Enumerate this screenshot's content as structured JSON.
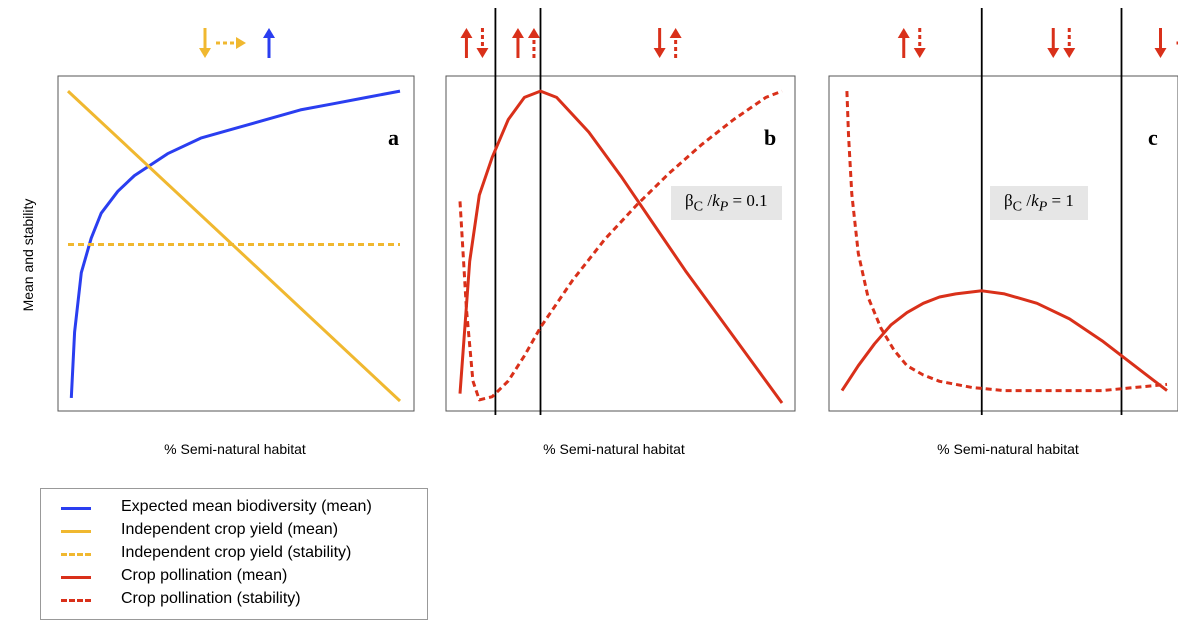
{
  "colors": {
    "blue": "#2a3ef0",
    "yellow": "#f0b830",
    "red": "#d9301a"
  },
  "y_axis_label": "Mean and stability",
  "legend": [
    {
      "label": "Expected mean biodiversity (mean)",
      "color": "#2a3ef0",
      "style": "solid"
    },
    {
      "label": "Independent crop yield (mean)",
      "color": "#f0b830",
      "style": "solid"
    },
    {
      "label": "Independent crop yield (stability)",
      "color": "#f0b830",
      "style": "dashed"
    },
    {
      "label": "Crop pollination (mean)",
      "color": "#d9301a",
      "style": "solid"
    },
    {
      "label": "Crop pollination (stability)",
      "color": "#d9301a",
      "style": "dashed"
    }
  ],
  "chart_data": [
    {
      "type": "line",
      "panel": "a",
      "panel_label": "a",
      "xlabel": "% Semi-natural habitat",
      "ylabel": "Mean and stability",
      "xlim": [
        0,
        1
      ],
      "ylim": [
        0,
        1
      ],
      "grid": false,
      "arrows": [
        {
          "dir": "down",
          "style": "solid",
          "color": "#f0b830"
        },
        {
          "dir": "right",
          "style": "dashed",
          "color": "#f0b830"
        },
        {
          "dir": "up",
          "style": "solid",
          "color": "#2a3ef0"
        }
      ],
      "series": [
        {
          "name": "Expected mean biodiversity (mean)",
          "color": "#2a3ef0",
          "style": "solid",
          "x": [
            0.01,
            0.02,
            0.04,
            0.07,
            0.1,
            0.15,
            0.2,
            0.3,
            0.4,
            0.5,
            0.6,
            0.7,
            0.8,
            0.9,
            1.0
          ],
          "y": [
            0.01,
            0.22,
            0.41,
            0.52,
            0.6,
            0.67,
            0.72,
            0.79,
            0.84,
            0.87,
            0.9,
            0.93,
            0.95,
            0.97,
            0.99
          ]
        },
        {
          "name": "Independent crop yield (mean)",
          "color": "#f0b830",
          "style": "solid",
          "x": [
            0,
            1
          ],
          "y": [
            0.99,
            0.0
          ]
        },
        {
          "name": "Independent crop yield (stability)",
          "color": "#f0b830",
          "style": "dashed",
          "x": [
            0,
            1
          ],
          "y": [
            0.5,
            0.5
          ]
        }
      ]
    },
    {
      "type": "line",
      "panel": "b",
      "panel_label": "b",
      "ratio_label": {
        "beta": "β",
        "sub_c": "C",
        "k": "k",
        "sub_p": "P",
        "value": "= 0.1"
      },
      "xlabel": "% Semi-natural habitat",
      "xlim": [
        0,
        1
      ],
      "ylim": [
        0,
        1
      ],
      "grid": false,
      "vlines": [
        0.11,
        0.25
      ],
      "arrow_groups": [
        {
          "x": 0.02,
          "arrows": [
            {
              "dir": "up",
              "style": "solid"
            },
            {
              "dir": "down",
              "style": "dashed"
            }
          ]
        },
        {
          "x": 0.18,
          "arrows": [
            {
              "dir": "up",
              "style": "solid"
            },
            {
              "dir": "up",
              "style": "dashed"
            }
          ]
        },
        {
          "x": 0.62,
          "arrows": [
            {
              "dir": "down",
              "style": "solid"
            },
            {
              "dir": "up",
              "style": "dashed"
            }
          ]
        }
      ],
      "series": [
        {
          "name": "Crop pollination (mean)",
          "color": "#d9301a",
          "style": "solid",
          "x": [
            0.0,
            0.03,
            0.06,
            0.1,
            0.15,
            0.2,
            0.25,
            0.3,
            0.4,
            0.5,
            0.6,
            0.7,
            0.8,
            0.9,
            1.0
          ],
          "y": [
            0.03,
            0.45,
            0.66,
            0.78,
            0.9,
            0.97,
            0.99,
            0.97,
            0.86,
            0.72,
            0.57,
            0.42,
            0.28,
            0.14,
            0.0
          ]
        },
        {
          "name": "Crop pollination (stability)",
          "color": "#d9301a",
          "style": "dashed",
          "x": [
            0.0,
            0.02,
            0.04,
            0.06,
            0.1,
            0.15,
            0.2,
            0.25,
            0.35,
            0.45,
            0.55,
            0.65,
            0.75,
            0.85,
            0.95,
            1.0
          ],
          "y": [
            0.64,
            0.3,
            0.07,
            0.01,
            0.02,
            0.07,
            0.15,
            0.24,
            0.39,
            0.52,
            0.63,
            0.73,
            0.82,
            0.9,
            0.97,
            0.99
          ]
        }
      ]
    },
    {
      "type": "line",
      "panel": "c",
      "panel_label": "c",
      "ratio_label": {
        "beta": "β",
        "sub_c": "C",
        "k": "k",
        "sub_p": "P",
        "value": "= 1"
      },
      "xlabel": "% Semi-natural habitat",
      "xlim": [
        0,
        1
      ],
      "ylim": [
        0,
        1
      ],
      "grid": false,
      "vlines": [
        0.43,
        0.86
      ],
      "arrow_groups": [
        {
          "x": 0.19,
          "arrows": [
            {
              "dir": "up",
              "style": "solid"
            },
            {
              "dir": "down",
              "style": "dashed"
            }
          ]
        },
        {
          "x": 0.65,
          "arrows": [
            {
              "dir": "down",
              "style": "solid"
            },
            {
              "dir": "down",
              "style": "dashed"
            }
          ]
        },
        {
          "x": 0.98,
          "arrows": [
            {
              "dir": "down",
              "style": "solid"
            },
            {
              "dir": "right",
              "style": "dashed"
            }
          ]
        }
      ],
      "series": [
        {
          "name": "Crop pollination (mean)",
          "color": "#d9301a",
          "style": "solid",
          "x": [
            0.0,
            0.05,
            0.1,
            0.15,
            0.2,
            0.25,
            0.3,
            0.35,
            0.43,
            0.5,
            0.6,
            0.7,
            0.8,
            0.9,
            1.0
          ],
          "y": [
            0.03,
            0.11,
            0.18,
            0.24,
            0.28,
            0.31,
            0.33,
            0.34,
            0.35,
            0.34,
            0.31,
            0.26,
            0.19,
            0.11,
            0.03
          ]
        },
        {
          "name": "Crop pollination (stability)",
          "color": "#d9301a",
          "style": "dashed",
          "x": [
            0.015,
            0.02,
            0.03,
            0.05,
            0.08,
            0.12,
            0.16,
            0.2,
            0.25,
            0.3,
            0.4,
            0.5,
            0.6,
            0.7,
            0.8,
            0.9,
            1.0
          ],
          "y": [
            0.99,
            0.85,
            0.66,
            0.47,
            0.33,
            0.23,
            0.16,
            0.11,
            0.08,
            0.06,
            0.04,
            0.03,
            0.03,
            0.03,
            0.03,
            0.04,
            0.05
          ]
        }
      ]
    }
  ]
}
